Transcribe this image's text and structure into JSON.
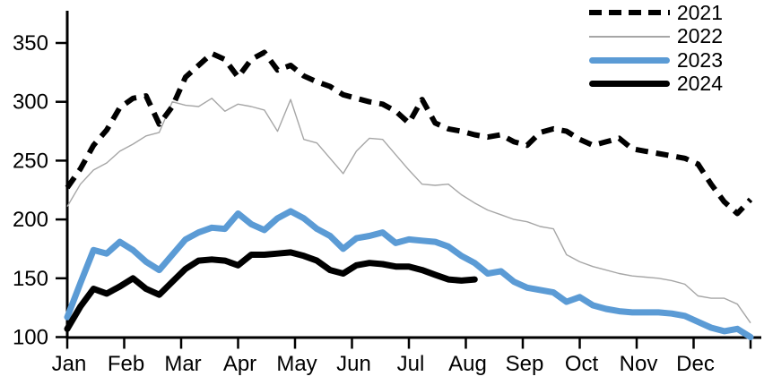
{
  "chart_data": {
    "type": "line",
    "title": "",
    "x_axis": {
      "tick_labels": [
        "Jan",
        "Feb",
        "Mar",
        "Apr",
        "May",
        "Jun",
        "Jul",
        "Aug",
        "Sep",
        "Oct",
        "Nov",
        "Dec"
      ],
      "num_ticks": 13,
      "note": "weekly data points, 53 per full year"
    },
    "y_axis": {
      "ticks": [
        100,
        150,
        200,
        250,
        300,
        350
      ],
      "min": 100,
      "max": 350,
      "grid": false
    },
    "legend": {
      "position": "top-right"
    },
    "series": [
      {
        "name": "2021",
        "style": "dashed",
        "color": "#000000",
        "width": 6,
        "values": [
          227,
          243,
          263,
          276,
          295,
          303,
          305,
          281,
          296,
          321,
          331,
          341,
          336,
          321,
          336,
          342,
          327,
          331,
          322,
          317,
          313,
          306,
          303,
          300,
          298,
          292,
          282,
          302,
          282,
          277,
          275,
          272,
          270,
          272,
          266,
          263,
          274,
          277,
          275,
          268,
          263,
          266,
          269,
          260,
          258,
          256,
          254,
          252,
          247,
          230,
          215,
          205,
          217
        ]
      },
      {
        "name": "2022",
        "style": "solid",
        "color": "#a6a6a6",
        "width": 1.4,
        "values": [
          211,
          230,
          242,
          248,
          258,
          264,
          271,
          274,
          300,
          297,
          296,
          303,
          292,
          298,
          296,
          293,
          275,
          302,
          268,
          265,
          252,
          239,
          258,
          269,
          268,
          255,
          242,
          230,
          229,
          230,
          221,
          214,
          208,
          204,
          200,
          198,
          194,
          192,
          170,
          164,
          160,
          157,
          154,
          152,
          151,
          150,
          148,
          145,
          135,
          133,
          133,
          128,
          112
        ]
      },
      {
        "name": "2023",
        "style": "solid",
        "color": "#5b9bd5",
        "width": 7,
        "values": [
          117,
          146,
          174,
          171,
          181,
          174,
          164,
          157,
          170,
          183,
          189,
          193,
          192,
          205,
          196,
          191,
          201,
          207,
          201,
          192,
          186,
          175,
          184,
          186,
          189,
          180,
          183,
          182,
          181,
          177,
          169,
          163,
          154,
          156,
          147,
          142,
          140,
          138,
          130,
          134,
          127,
          124,
          122,
          121,
          121,
          121,
          120,
          118,
          113,
          108,
          105,
          107,
          100
        ]
      },
      {
        "name": "2024",
        "style": "solid",
        "color": "#000000",
        "width": 7,
        "values": [
          107,
          126,
          141,
          137,
          143,
          150,
          141,
          136,
          147,
          158,
          165,
          166,
          165,
          161,
          170,
          170,
          171,
          172,
          169,
          165,
          157,
          154,
          161,
          163,
          162,
          160,
          160,
          157,
          153,
          149,
          148,
          149
        ]
      }
    ]
  }
}
